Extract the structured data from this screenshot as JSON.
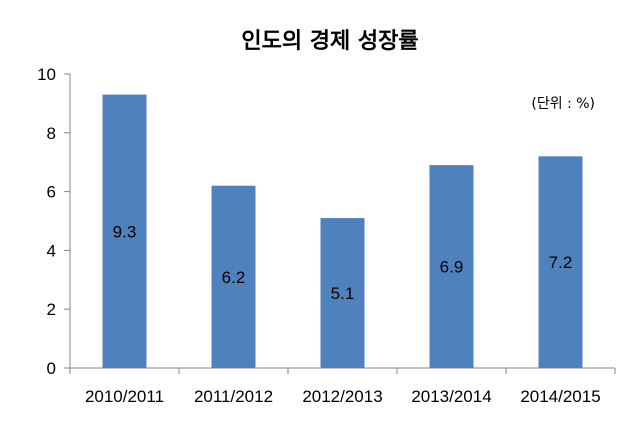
{
  "chart_data": {
    "type": "bar",
    "title": "인도의 경제 성장률",
    "unit_note": "(단위 : %)",
    "categories": [
      "2010/2011",
      "2011/2012",
      "2012/2013",
      "2013/2014",
      "2014/2015"
    ],
    "values": [
      9.3,
      6.2,
      5.1,
      6.9,
      7.2
    ],
    "data_labels": [
      "9.3",
      "6.2",
      "5.1",
      "6.9",
      "7.2"
    ],
    "yticks": [
      "0",
      "2",
      "4",
      "6",
      "8",
      "10"
    ],
    "ylim": [
      0,
      10
    ],
    "xlabel": "",
    "ylabel": "",
    "grid": false,
    "bar_color": "#4F81BD"
  }
}
